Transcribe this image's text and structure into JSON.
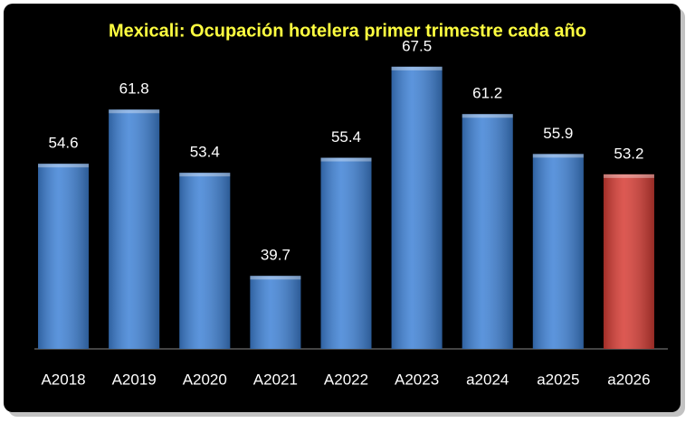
{
  "chart_data": {
    "type": "bar",
    "title": "Mexicali: Ocupación hotelera primer trimestre cada año",
    "categories": [
      "A2018",
      "A2019",
      "A2020",
      "A2021",
      "A2022",
      "A2023",
      "a2024",
      "a2025",
      "a2026"
    ],
    "values": [
      54.6,
      61.8,
      53.4,
      39.7,
      55.4,
      67.5,
      61.2,
      55.9,
      53.2
    ],
    "colors": [
      "#3f82d6",
      "#3f82d6",
      "#3f82d6",
      "#3f82d6",
      "#3f82d6",
      "#3f82d6",
      "#3f82d6",
      "#3f82d6",
      "#d63c34"
    ],
    "ylim": [
      30,
      70
    ]
  }
}
